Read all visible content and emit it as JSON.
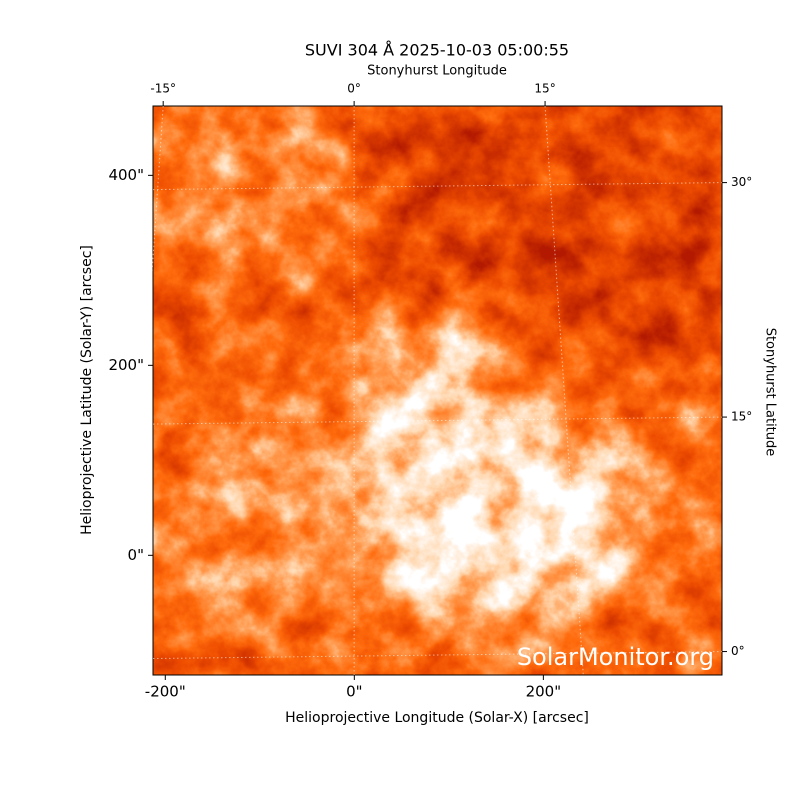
{
  "chart_data": {
    "type": "image",
    "title": "SUVI 304 Å 2025-10-03 05:00:55",
    "xlabel": "Helioprojective Longitude (Solar-X) [arcsec]",
    "ylabel": "Helioprojective Latitude (Solar-Y) [arcsec]",
    "x2label": "Stonyhurst Longitude",
    "y2label": "Stonyhurst Latitude",
    "watermark": "SolarMonitor.org",
    "xlim": [
      -213,
      389
    ],
    "ylim": [
      -126,
      473
    ],
    "xticks": [
      {
        "value": -200,
        "label": "-200\""
      },
      {
        "value": 0,
        "label": "0\""
      },
      {
        "value": 200,
        "label": "200\""
      }
    ],
    "yticks": [
      {
        "value": 0,
        "label": "0\""
      },
      {
        "value": 200,
        "label": "200\""
      },
      {
        "value": 400,
        "label": "400\""
      }
    ],
    "x2lim": [
      -15.8,
      28.9
    ],
    "x2ticks": [
      {
        "value": -15,
        "label": "-15°"
      },
      {
        "value": 0,
        "label": "0°"
      },
      {
        "value": 15,
        "label": "15°"
      }
    ],
    "y2lim": [
      -1.5,
      34.9
    ],
    "y2ticks": [
      {
        "value": 0,
        "label": "0°"
      },
      {
        "value": 15,
        "label": "15°"
      },
      {
        "value": 30,
        "label": "30°"
      }
    ],
    "grid": true
  }
}
